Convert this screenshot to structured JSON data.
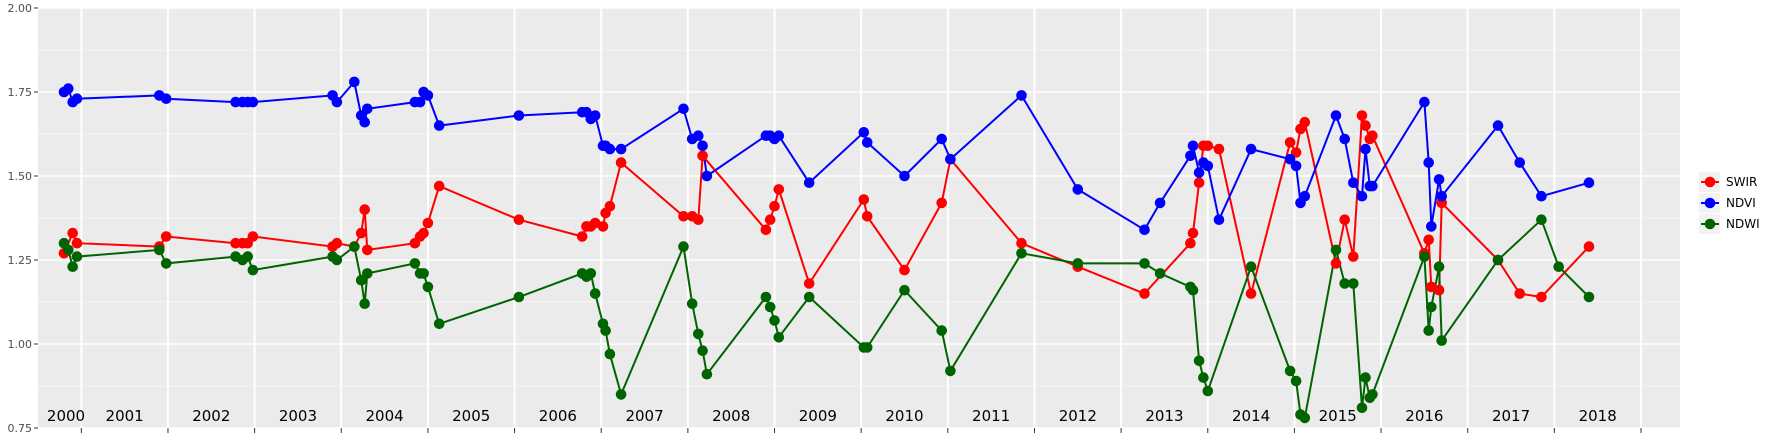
{
  "chart_data": {
    "type": "line",
    "title": "",
    "xlabel": "",
    "ylabel": "",
    "xlim": [
      2000.0,
      2018.95
    ],
    "ylim": [
      0.75,
      2.0
    ],
    "y_ticks": [
      "0.75",
      "1.00",
      "1.25",
      "1.50",
      "1.75",
      "2.00"
    ],
    "x_year_labels": [
      "2000",
      "2001",
      "2002",
      "2003",
      "2004",
      "2005",
      "2006",
      "2007",
      "2008",
      "2009",
      "2010",
      "2011",
      "2012",
      "2013",
      "2014",
      "2015",
      "2016",
      "2017",
      "2018"
    ],
    "grid": true,
    "legend_position": "right",
    "background": "#EBEBEB",
    "series": [
      {
        "name": "SWIR",
        "color": "#FF0000",
        "points": [
          [
            2000.3,
            1.27
          ],
          [
            2000.4,
            1.33
          ],
          [
            2000.45,
            1.3
          ],
          [
            2001.4,
            1.29
          ],
          [
            2001.48,
            1.32
          ],
          [
            2002.28,
            1.3
          ],
          [
            2002.36,
            1.3
          ],
          [
            2002.42,
            1.3
          ],
          [
            2002.48,
            1.32
          ],
          [
            2003.4,
            1.29
          ],
          [
            2003.45,
            1.3
          ],
          [
            2003.65,
            1.29
          ],
          [
            2003.73,
            1.33
          ],
          [
            2003.77,
            1.4
          ],
          [
            2003.8,
            1.28
          ],
          [
            2004.35,
            1.3
          ],
          [
            2004.41,
            1.32
          ],
          [
            2004.45,
            1.33
          ],
          [
            2004.5,
            1.36
          ],
          [
            2004.63,
            1.47
          ],
          [
            2005.55,
            1.37
          ],
          [
            2006.28,
            1.32
          ],
          [
            2006.33,
            1.35
          ],
          [
            2006.38,
            1.35
          ],
          [
            2006.43,
            1.36
          ],
          [
            2006.52,
            1.35
          ],
          [
            2006.55,
            1.39
          ],
          [
            2006.6,
            1.41
          ],
          [
            2006.73,
            1.54
          ],
          [
            2007.45,
            1.38
          ],
          [
            2007.55,
            1.38
          ],
          [
            2007.62,
            1.37
          ],
          [
            2007.67,
            1.56
          ],
          [
            2008.4,
            1.34
          ],
          [
            2008.45,
            1.37
          ],
          [
            2008.5,
            1.41
          ],
          [
            2008.55,
            1.46
          ],
          [
            2008.9,
            1.18
          ],
          [
            2009.53,
            1.43
          ],
          [
            2009.57,
            1.38
          ],
          [
            2010.0,
            1.22
          ],
          [
            2010.43,
            1.42
          ],
          [
            2010.53,
            1.55
          ],
          [
            2011.35,
            1.3
          ],
          [
            2012.0,
            1.23
          ],
          [
            2012.77,
            1.15
          ],
          [
            2013.3,
            1.3
          ],
          [
            2013.33,
            1.33
          ],
          [
            2013.4,
            1.48
          ],
          [
            2013.45,
            1.59
          ],
          [
            2013.5,
            1.59
          ],
          [
            2013.63,
            1.58
          ],
          [
            2014.0,
            1.15
          ],
          [
            2014.45,
            1.6
          ],
          [
            2014.52,
            1.57
          ],
          [
            2014.57,
            1.64
          ],
          [
            2014.62,
            1.66
          ],
          [
            2014.98,
            1.24
          ],
          [
            2015.08,
            1.37
          ],
          [
            2015.18,
            1.26
          ],
          [
            2015.28,
            1.68
          ],
          [
            2015.32,
            1.65
          ],
          [
            2015.37,
            1.61
          ],
          [
            2015.4,
            1.62
          ],
          [
            2016.0,
            1.27
          ],
          [
            2016.05,
            1.31
          ],
          [
            2016.08,
            1.17
          ],
          [
            2016.17,
            1.16
          ],
          [
            2016.2,
            1.42
          ],
          [
            2016.85,
            1.25
          ],
          [
            2017.1,
            1.15
          ],
          [
            2017.35,
            1.14
          ],
          [
            2017.9,
            1.29
          ]
        ]
      },
      {
        "name": "NDVI",
        "color": "#0000FF",
        "points": [
          [
            2000.3,
            1.75
          ],
          [
            2000.35,
            1.76
          ],
          [
            2000.4,
            1.72
          ],
          [
            2000.45,
            1.73
          ],
          [
            2001.4,
            1.74
          ],
          [
            2001.48,
            1.73
          ],
          [
            2002.28,
            1.72
          ],
          [
            2002.36,
            1.72
          ],
          [
            2002.42,
            1.72
          ],
          [
            2002.48,
            1.72
          ],
          [
            2003.4,
            1.74
          ],
          [
            2003.45,
            1.72
          ],
          [
            2003.65,
            1.78
          ],
          [
            2003.73,
            1.68
          ],
          [
            2003.77,
            1.66
          ],
          [
            2003.8,
            1.7
          ],
          [
            2004.35,
            1.72
          ],
          [
            2004.41,
            1.72
          ],
          [
            2004.45,
            1.75
          ],
          [
            2004.5,
            1.74
          ],
          [
            2004.63,
            1.65
          ],
          [
            2005.55,
            1.68
          ],
          [
            2006.28,
            1.69
          ],
          [
            2006.33,
            1.69
          ],
          [
            2006.38,
            1.67
          ],
          [
            2006.43,
            1.68
          ],
          [
            2006.52,
            1.59
          ],
          [
            2006.55,
            1.59
          ],
          [
            2006.6,
            1.58
          ],
          [
            2006.73,
            1.58
          ],
          [
            2007.45,
            1.7
          ],
          [
            2007.55,
            1.61
          ],
          [
            2007.62,
            1.62
          ],
          [
            2007.67,
            1.59
          ],
          [
            2007.72,
            1.5
          ],
          [
            2008.4,
            1.62
          ],
          [
            2008.45,
            1.62
          ],
          [
            2008.5,
            1.61
          ],
          [
            2008.55,
            1.62
          ],
          [
            2008.9,
            1.48
          ],
          [
            2009.53,
            1.63
          ],
          [
            2009.57,
            1.6
          ],
          [
            2010.0,
            1.5
          ],
          [
            2010.43,
            1.61
          ],
          [
            2010.53,
            1.55
          ],
          [
            2011.35,
            1.74
          ],
          [
            2012.0,
            1.46
          ],
          [
            2012.77,
            1.34
          ],
          [
            2012.95,
            1.42
          ],
          [
            2013.3,
            1.56
          ],
          [
            2013.33,
            1.59
          ],
          [
            2013.4,
            1.51
          ],
          [
            2013.45,
            1.54
          ],
          [
            2013.5,
            1.53
          ],
          [
            2013.63,
            1.37
          ],
          [
            2014.0,
            1.58
          ],
          [
            2014.45,
            1.55
          ],
          [
            2014.52,
            1.53
          ],
          [
            2014.57,
            1.42
          ],
          [
            2014.62,
            1.44
          ],
          [
            2014.98,
            1.68
          ],
          [
            2015.08,
            1.61
          ],
          [
            2015.18,
            1.48
          ],
          [
            2015.28,
            1.44
          ],
          [
            2015.32,
            1.58
          ],
          [
            2015.37,
            1.47
          ],
          [
            2015.4,
            1.47
          ],
          [
            2016.0,
            1.72
          ],
          [
            2016.05,
            1.54
          ],
          [
            2016.08,
            1.35
          ],
          [
            2016.17,
            1.49
          ],
          [
            2016.2,
            1.44
          ],
          [
            2016.85,
            1.65
          ],
          [
            2017.1,
            1.54
          ],
          [
            2017.35,
            1.44
          ],
          [
            2017.9,
            1.48
          ]
        ]
      },
      {
        "name": "NDWI",
        "color": "#006400",
        "points": [
          [
            2000.3,
            1.3
          ],
          [
            2000.35,
            1.28
          ],
          [
            2000.4,
            1.23
          ],
          [
            2000.45,
            1.26
          ],
          [
            2001.4,
            1.28
          ],
          [
            2001.48,
            1.24
          ],
          [
            2002.28,
            1.26
          ],
          [
            2002.36,
            1.25
          ],
          [
            2002.42,
            1.26
          ],
          [
            2002.48,
            1.22
          ],
          [
            2003.4,
            1.26
          ],
          [
            2003.45,
            1.25
          ],
          [
            2003.65,
            1.29
          ],
          [
            2003.73,
            1.19
          ],
          [
            2003.77,
            1.12
          ],
          [
            2003.8,
            1.21
          ],
          [
            2004.35,
            1.24
          ],
          [
            2004.41,
            1.21
          ],
          [
            2004.45,
            1.21
          ],
          [
            2004.5,
            1.17
          ],
          [
            2004.63,
            1.06
          ],
          [
            2005.55,
            1.14
          ],
          [
            2006.28,
            1.21
          ],
          [
            2006.33,
            1.2
          ],
          [
            2006.38,
            1.21
          ],
          [
            2006.43,
            1.15
          ],
          [
            2006.52,
            1.06
          ],
          [
            2006.55,
            1.04
          ],
          [
            2006.6,
            0.97
          ],
          [
            2006.73,
            0.85
          ],
          [
            2007.45,
            1.29
          ],
          [
            2007.55,
            1.12
          ],
          [
            2007.62,
            1.03
          ],
          [
            2007.67,
            0.98
          ],
          [
            2007.72,
            0.91
          ],
          [
            2008.4,
            1.14
          ],
          [
            2008.45,
            1.11
          ],
          [
            2008.5,
            1.07
          ],
          [
            2008.55,
            1.02
          ],
          [
            2008.9,
            1.14
          ],
          [
            2009.53,
            0.99
          ],
          [
            2009.57,
            0.99
          ],
          [
            2010.0,
            1.16
          ],
          [
            2010.43,
            1.04
          ],
          [
            2010.53,
            0.92
          ],
          [
            2011.35,
            1.27
          ],
          [
            2012.0,
            1.24
          ],
          [
            2012.77,
            1.24
          ],
          [
            2012.95,
            1.21
          ],
          [
            2013.3,
            1.17
          ],
          [
            2013.33,
            1.16
          ],
          [
            2013.4,
            0.95
          ],
          [
            2013.45,
            0.9
          ],
          [
            2013.5,
            0.86
          ],
          [
            2014.0,
            1.23
          ],
          [
            2014.45,
            0.92
          ],
          [
            2014.52,
            0.89
          ],
          [
            2014.57,
            0.79
          ],
          [
            2014.62,
            0.78
          ],
          [
            2014.98,
            1.28
          ],
          [
            2015.08,
            1.18
          ],
          [
            2015.18,
            1.18
          ],
          [
            2015.28,
            0.81
          ],
          [
            2015.32,
            0.9
          ],
          [
            2015.37,
            0.84
          ],
          [
            2015.4,
            0.85
          ],
          [
            2016.0,
            1.26
          ],
          [
            2016.05,
            1.04
          ],
          [
            2016.08,
            1.11
          ],
          [
            2016.17,
            1.23
          ],
          [
            2016.2,
            1.01
          ],
          [
            2016.85,
            1.25
          ],
          [
            2017.35,
            1.37
          ],
          [
            2017.55,
            1.23
          ],
          [
            2017.9,
            1.14
          ]
        ]
      }
    ]
  }
}
